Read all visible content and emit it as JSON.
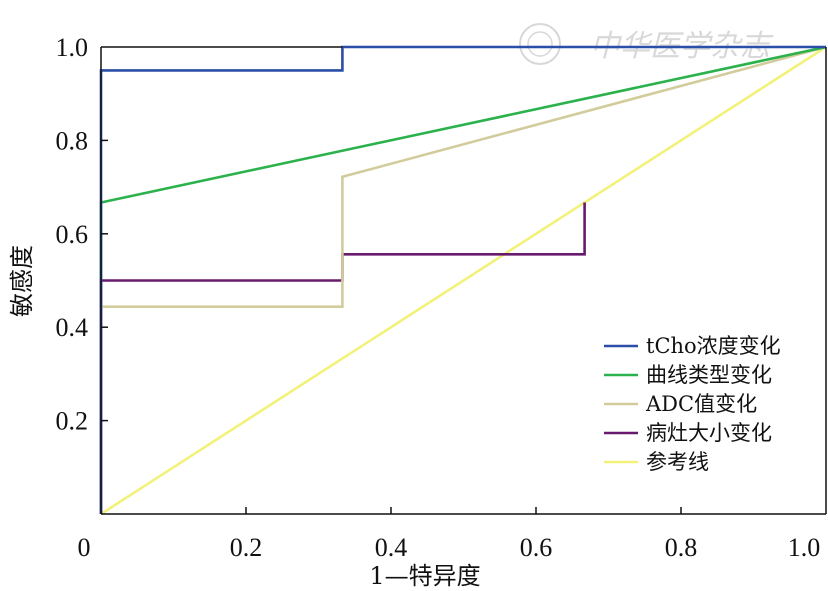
{
  "chart_data": {
    "type": "line",
    "title": "",
    "xlabel": "1—特异度",
    "ylabel": "敏感度",
    "xlim": [
      0,
      1
    ],
    "ylim": [
      0,
      1
    ],
    "x_ticks": [
      {
        "value": 0,
        "label": "0"
      },
      {
        "value": 0.2,
        "label": "0.2"
      },
      {
        "value": 0.4,
        "label": "0.4"
      },
      {
        "value": 0.6,
        "label": "0.6"
      },
      {
        "value": 0.8,
        "label": "0.8"
      },
      {
        "value": 1.0,
        "label": "1.0"
      }
    ],
    "y_ticks": [
      {
        "value": 0.2,
        "label": "0.2"
      },
      {
        "value": 0.4,
        "label": "0.4"
      },
      {
        "value": 0.6,
        "label": "0.6"
      },
      {
        "value": 0.8,
        "label": "0.8"
      },
      {
        "value": 1.0,
        "label": "1.0"
      }
    ],
    "grid": false,
    "legend_position": "bottom-right",
    "watermark": "中华医学杂志",
    "series": [
      {
        "name": "tCho浓度变化",
        "color": "#2b4ea8",
        "x": [
          0,
          0,
          0.333,
          0.333,
          1.0
        ],
        "y": [
          0,
          0.95,
          0.95,
          1.0,
          1.0
        ]
      },
      {
        "name": "曲线类型变化",
        "color": "#2bb24c",
        "x": [
          0,
          0,
          1.0
        ],
        "y": [
          0.5,
          0.667,
          1.0
        ]
      },
      {
        "name": "ADC值变化",
        "color": "#d2cc9c",
        "x": [
          0,
          0.333,
          0.333,
          1.0
        ],
        "y": [
          0.444,
          0.444,
          0.722,
          1.0
        ]
      },
      {
        "name": "病灶大小变化",
        "color": "#6a1a6e",
        "x": [
          0,
          0,
          0.333,
          0.333,
          0.667,
          0.667
        ],
        "y": [
          0,
          0.5,
          0.5,
          0.556,
          0.556,
          0.667
        ]
      },
      {
        "name": "参考线",
        "color": "#f2f27a",
        "x": [
          0,
          1.0
        ],
        "y": [
          0,
          1.0
        ]
      }
    ]
  }
}
